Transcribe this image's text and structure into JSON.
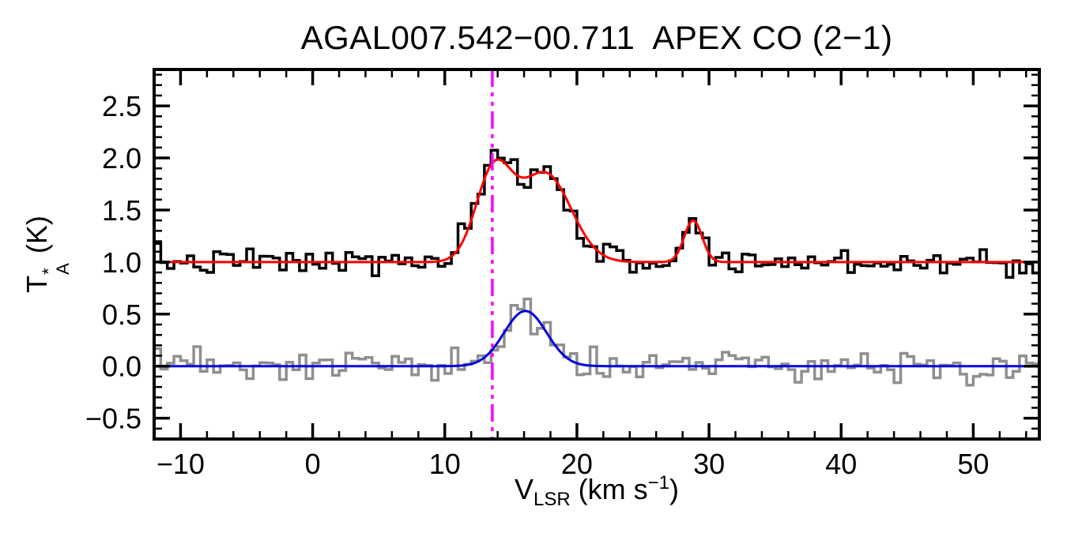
{
  "chart_data": {
    "type": "line",
    "title": "AGAL007.542−00.711  APEX CO (2−1)",
    "xlabel_parts": {
      "base": "V",
      "sub": "LSR",
      "mid": " (km s",
      "sup": "−1",
      "end": ")"
    },
    "ylabel_parts": {
      "base": "T",
      "sup": "*",
      "sub": "A",
      "rest": " (K)"
    },
    "xlim": [
      -12,
      55
    ],
    "ylim": [
      -0.7,
      2.85
    ],
    "xticks": {
      "values": [
        -10,
        0,
        10,
        20,
        30,
        40,
        50
      ],
      "labels": [
        "−10",
        "0",
        "10",
        "20",
        "30",
        "40",
        "50"
      ],
      "minor_step": 2
    },
    "yticks": {
      "values": [
        -0.5,
        0,
        0.5,
        1,
        1.5,
        2,
        2.5
      ],
      "labels": [
        "−0.5",
        "0.0",
        "0.5",
        "1.0",
        "1.5",
        "2.0",
        "2.5"
      ],
      "minor_step": 0.1
    },
    "grid": false,
    "channel_width": 0.5,
    "axis_color": "#000000",
    "background": "#ffffff",
    "vline": {
      "x": 13.6,
      "color": "#ff00ff",
      "style": "dash-dot-dot"
    },
    "series": [
      {
        "name": "offset-spectrum-histogram",
        "style": "histogram",
        "color": "#8f8f8f",
        "baseline": 0.0,
        "noise_sigma": 0.085,
        "seed": 23,
        "components": [
          {
            "center": 16.1,
            "amp": 0.5,
            "fwhm": 3.8
          }
        ]
      },
      {
        "name": "main-spectrum-histogram",
        "style": "histogram",
        "color": "#000000",
        "baseline": 1.0,
        "noise_sigma": 0.065,
        "seed": 7,
        "components": [
          {
            "center": 13.7,
            "amp": 0.85,
            "fwhm": 3.2
          },
          {
            "center": 17.6,
            "amp": 0.85,
            "fwhm": 4.6
          },
          {
            "center": 28.8,
            "amp": 0.4,
            "fwhm": 1.6
          }
        ]
      }
    ],
    "fits": [
      {
        "name": "offset-gaussian-fit",
        "color": "#0000dd",
        "baseline": 0.0,
        "components": [
          {
            "center": 16.1,
            "amp": 0.53,
            "fwhm": 3.8
          }
        ]
      },
      {
        "name": "main-gaussian-fit",
        "color": "#ff0000",
        "baseline": 1.0,
        "components": [
          {
            "center": 13.7,
            "amp": 0.85,
            "fwhm": 3.2
          },
          {
            "center": 17.6,
            "amp": 0.85,
            "fwhm": 4.6
          },
          {
            "center": 28.8,
            "amp": 0.4,
            "fwhm": 1.6
          }
        ]
      }
    ]
  }
}
